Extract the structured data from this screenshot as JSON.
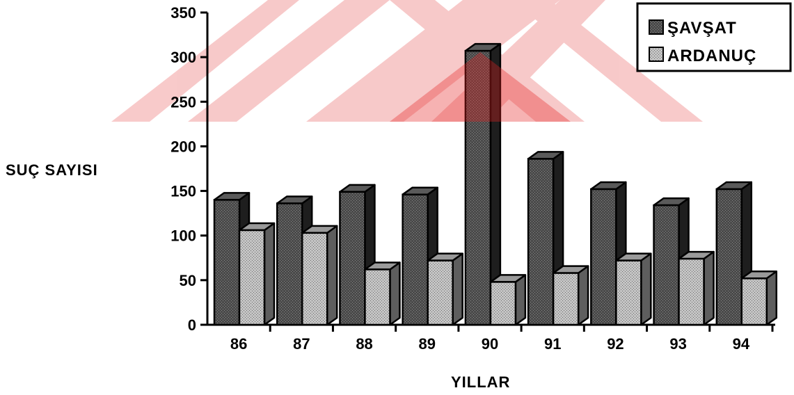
{
  "chart_data": {
    "type": "bar",
    "title": "",
    "xlabel": "YILLAR",
    "ylabel": "SUÇ SAYISI",
    "categories": [
      "86",
      "87",
      "88",
      "89",
      "90",
      "91",
      "92",
      "93",
      "94"
    ],
    "series": [
      {
        "name": "ŞAVŞAT",
        "values": [
          140,
          136,
          149,
          146,
          307,
          186,
          152,
          134,
          152
        ]
      },
      {
        "name": "ARDANUÇ",
        "values": [
          106,
          103,
          62,
          72,
          48,
          58,
          72,
          74,
          52
        ]
      }
    ],
    "ylim": [
      0,
      350
    ],
    "yticks": [
      "0",
      "50",
      "100",
      "150",
      "200",
      "250",
      "300",
      "350"
    ],
    "grid": false,
    "legend_position": "top-right",
    "colors": {
      "series_1_front": "#4a4a4a",
      "series_1_side": "#1e1e1e",
      "series_2_front": "#b8b8b8",
      "series_2_side": "#5e5e5e"
    },
    "watermark_colors": {
      "red": "#e52222",
      "pink": "#f7c4c4"
    }
  }
}
